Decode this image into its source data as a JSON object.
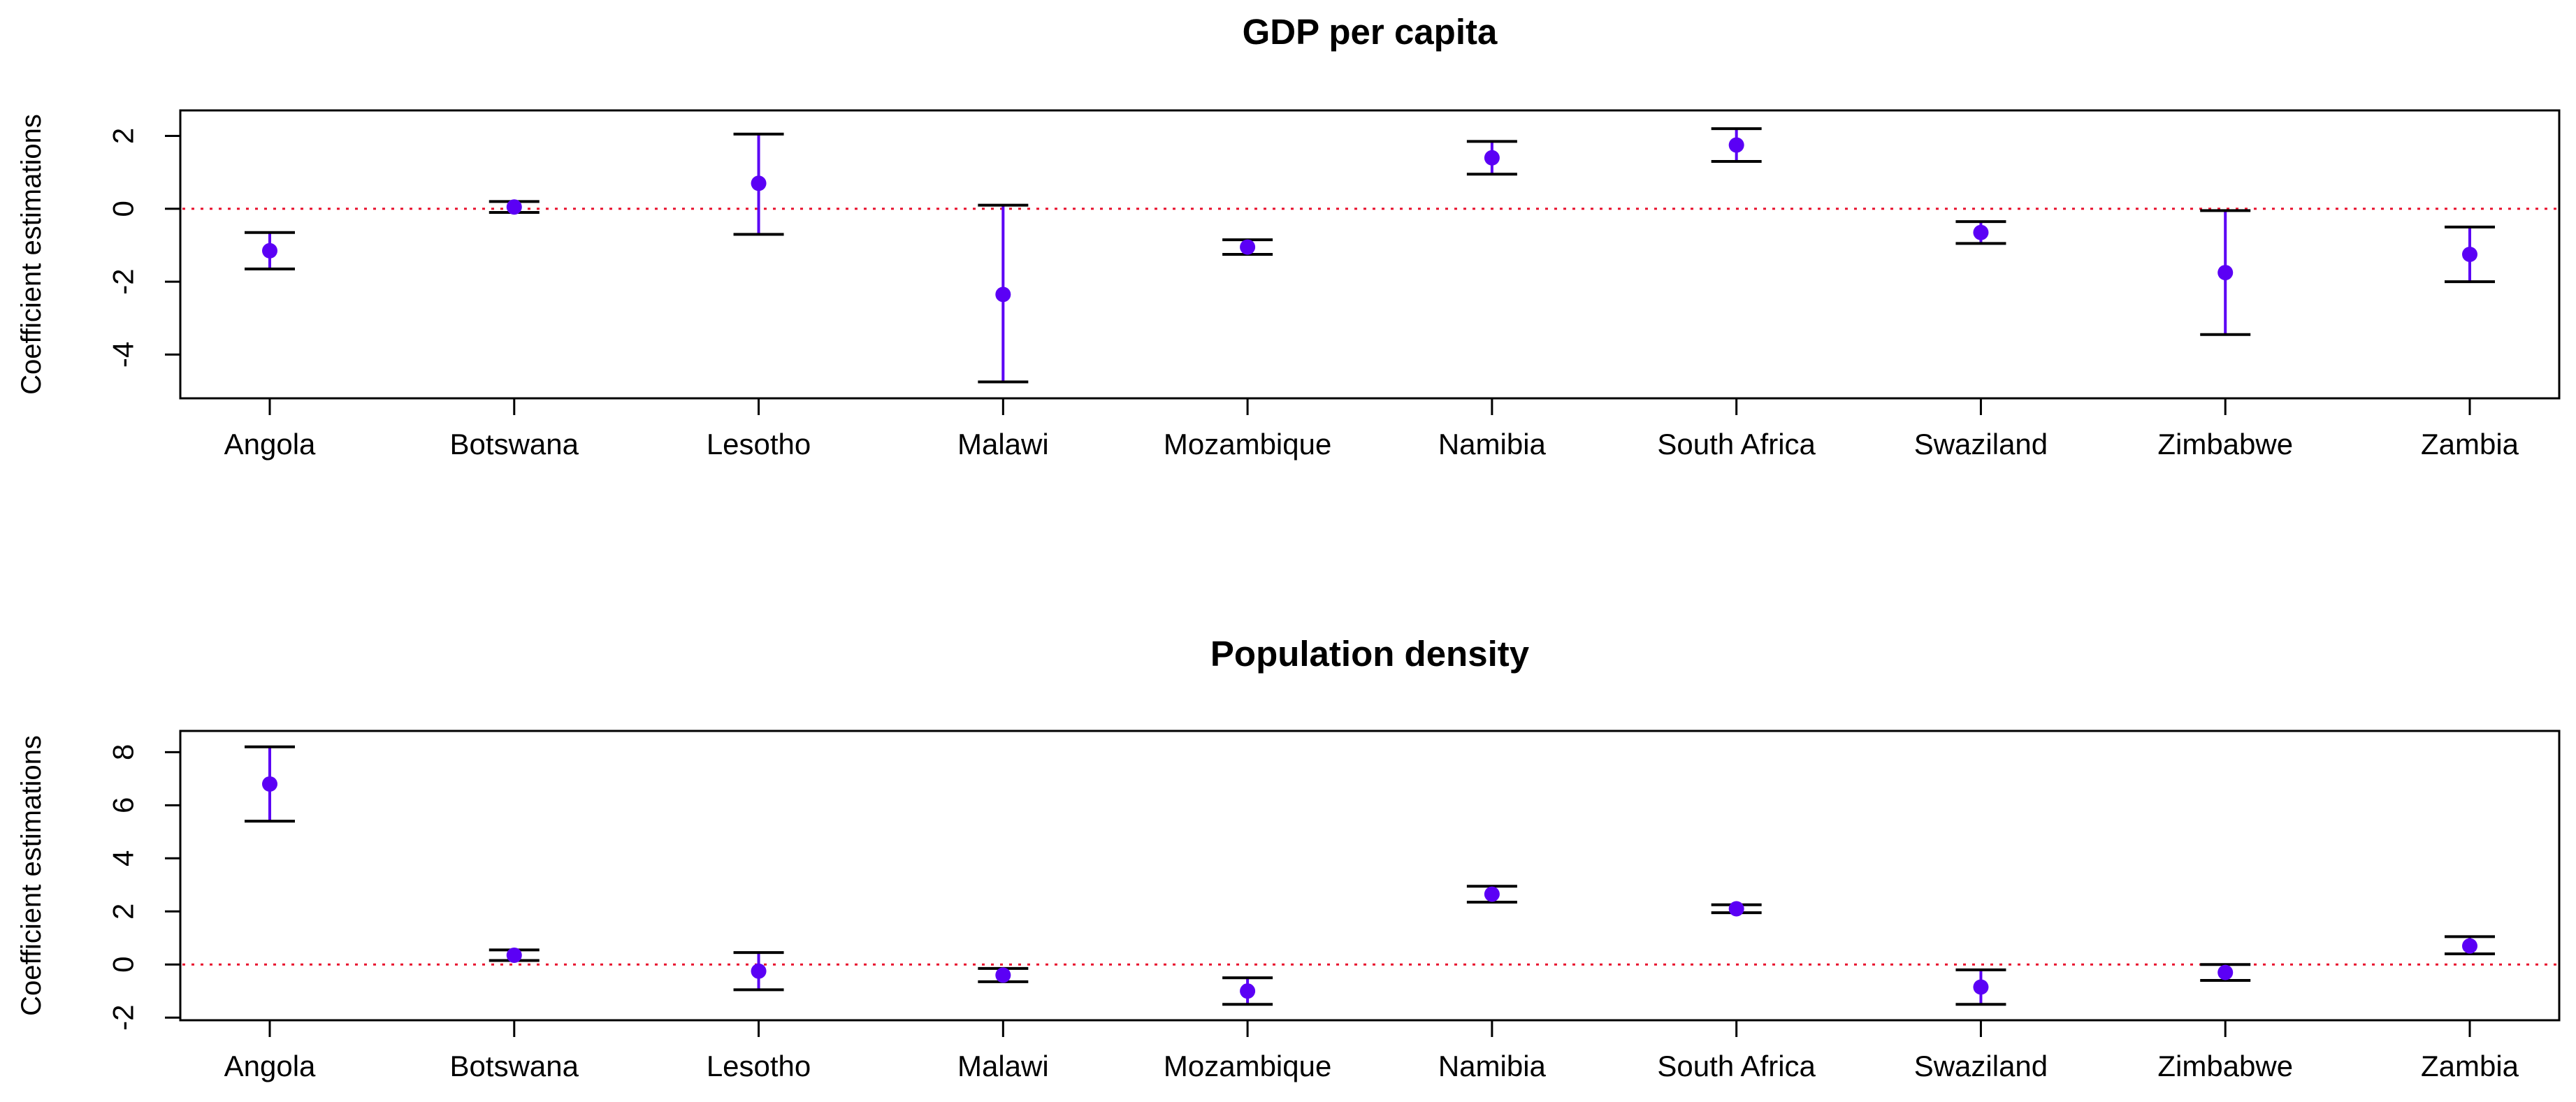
{
  "chart_data": [
    {
      "type": "errorbar",
      "title": "GDP per capita",
      "xlabel": "",
      "ylabel": "Coefficient estimations",
      "categories": [
        "Angola",
        "Botswana",
        "Lesotho",
        "Malawi",
        "Mozambique",
        "Namibia",
        "South Africa",
        "Swaziland",
        "Zimbabwe",
        "Zambia"
      ],
      "estimates": [
        -1.15,
        0.05,
        0.7,
        -2.35,
        -1.05,
        1.4,
        1.75,
        -0.65,
        -1.75,
        -1.25
      ],
      "lower": [
        -1.65,
        -0.1,
        -0.7,
        -4.75,
        -1.25,
        0.95,
        1.3,
        -0.95,
        -3.45,
        -2.0
      ],
      "upper": [
        -0.65,
        0.2,
        2.05,
        0.1,
        -0.85,
        1.85,
        2.2,
        -0.35,
        -0.05,
        -0.5
      ],
      "yticks": [
        -4,
        -2,
        0,
        2
      ],
      "ylim": [
        -5.2,
        2.7
      ],
      "reference_line": 0,
      "grid": false
    },
    {
      "type": "errorbar",
      "title": "Population density",
      "xlabel": "",
      "ylabel": "Coefficient estimations",
      "categories": [
        "Angola",
        "Botswana",
        "Lesotho",
        "Malawi",
        "Mozambique",
        "Namibia",
        "South Africa",
        "Swaziland",
        "Zimbabwe",
        "Zambia"
      ],
      "estimates": [
        6.8,
        0.35,
        -0.25,
        -0.4,
        -1.0,
        2.65,
        2.1,
        -0.85,
        -0.3,
        0.7
      ],
      "lower": [
        5.4,
        0.15,
        -0.95,
        -0.65,
        -1.5,
        2.35,
        1.95,
        -1.5,
        -0.6,
        0.4
      ],
      "upper": [
        8.2,
        0.55,
        0.45,
        -0.15,
        -0.5,
        2.95,
        2.25,
        -0.2,
        0.0,
        1.05
      ],
      "yticks": [
        -2,
        0,
        2,
        4,
        6,
        8
      ],
      "ylim": [
        -2.1,
        8.8
      ],
      "reference_line": 0,
      "grid": false
    }
  ],
  "colors": {
    "point": "#5b00f5",
    "whisker": "#5b00f5",
    "cap": "#000000",
    "reference_line": "#e8112d",
    "axis": "#000000"
  }
}
